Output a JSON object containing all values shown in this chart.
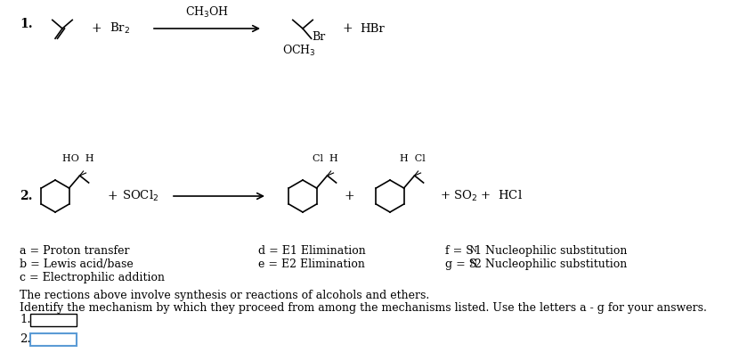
{
  "bg_color": "#ffffff",
  "fig_width": 8.21,
  "fig_height": 4.05,
  "dpi": 100,
  "r1_number": "1.",
  "r1_reagent_above": "CH$_3$OH",
  "r1_reactant2": "Br$_2$",
  "r1_product2": "HBr",
  "r1_br": "Br",
  "r1_och3": "OCH$_3$",
  "r2_number": "2.",
  "r2_reagent": "SOCl$_2$",
  "r2_so2_hcl": "+ SO$_2$ +  HCl",
  "r2_ho_h": "HO  H",
  "r2_cl_h": "Cl  H",
  "r2_h_cl": "H  Cl",
  "mech_a": "a = Proton transfer",
  "mech_b": "b = Lewis acid/base",
  "mech_c": "c = Electrophilic addition",
  "mech_d": "d = E1 Elimination",
  "mech_e": "e = E2 Elimination",
  "instr1": "The rections above involve synthesis or reactions of alcohols and ethers.",
  "instr2": "Identify the mechanism by which they proceed from among the mechanisms listed. Use the letters a - g for your answers.",
  "ans1_label": "1.",
  "ans2_label": "2.",
  "box1_color": "#000000",
  "box2_color": "#5b9bd5",
  "font_family": "DejaVu Serif"
}
